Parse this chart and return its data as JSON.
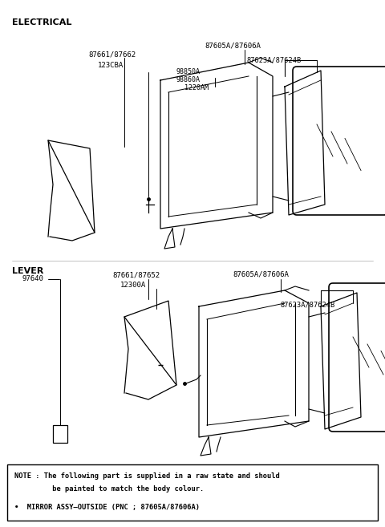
{
  "bg_color": "#ffffff",
  "section1_label": "ELECTRICAL",
  "section2_label": "LEVER",
  "note_line1": "NOTE : The following part is supplied in a raw state and should",
  "note_line2": "         be painted to match the body colour.",
  "note_line3": "•  MIRROR ASSY–OUTSIDE (PNC ; 87605A/87606A)",
  "fig_w": 4.8,
  "fig_h": 6.57,
  "dpi": 100
}
